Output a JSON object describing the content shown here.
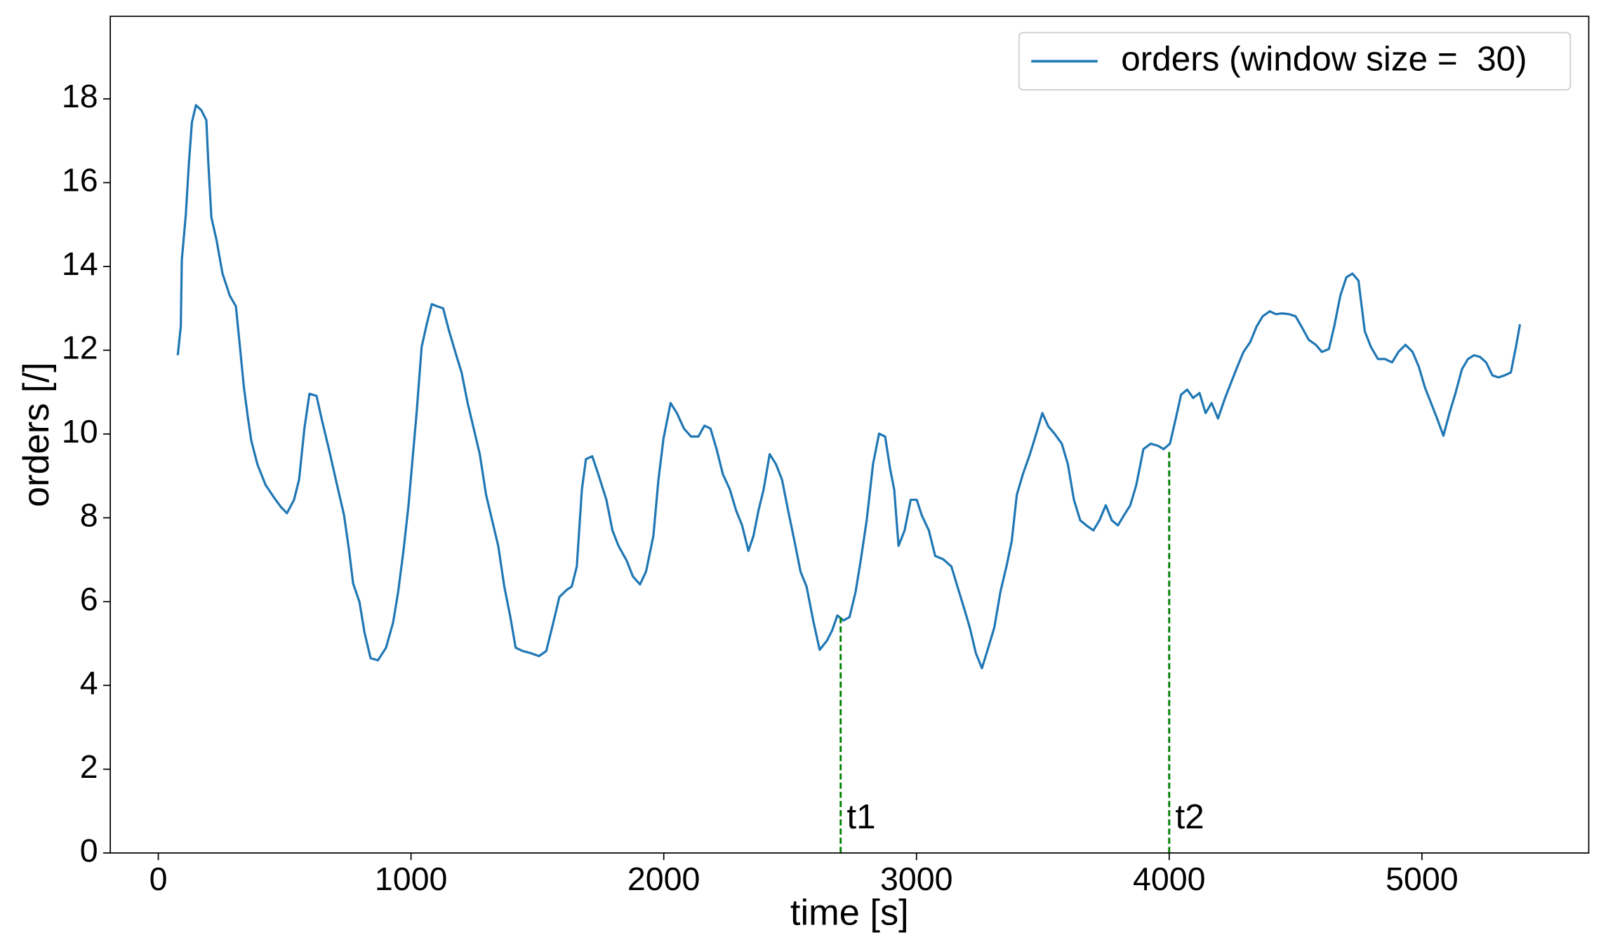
{
  "chart_data": {
    "type": "line",
    "xlabel": "time [s]",
    "ylabel": "orders [/]",
    "xlim": [
      -190,
      5660
    ],
    "ylim": [
      0,
      19.97
    ],
    "xticks": [
      0,
      1000,
      2000,
      3000,
      4000,
      5000
    ],
    "yticks": [
      0,
      2,
      4,
      6,
      8,
      10,
      12,
      14,
      16,
      18
    ],
    "legend": "upper right",
    "series": [
      {
        "name": "orders (window size =  30)",
        "color": "#1f77b4",
        "x": [
          77,
          89,
          93,
          109,
          121,
          133,
          149,
          170,
          190,
          198,
          210,
          230,
          254,
          283,
          307,
          323,
          339,
          355,
          368,
          392,
          424,
          456,
          485,
          509,
          537,
          557,
          578,
          598,
          626,
          646,
          675,
          707,
          735,
          755,
          771,
          796,
          816,
          840,
          869,
          901,
          929,
          949,
          970,
          990,
          1006,
          1022,
          1042,
          1062,
          1082,
          1103,
          1127,
          1151,
          1175,
          1200,
          1224,
          1248,
          1272,
          1297,
          1321,
          1345,
          1369,
          1393,
          1414,
          1442,
          1474,
          1506,
          1535,
          1563,
          1587,
          1616,
          1636,
          1656,
          1676,
          1692,
          1717,
          1741,
          1773,
          1797,
          1821,
          1854,
          1878,
          1906,
          1930,
          1959,
          1979,
          1999,
          2027,
          2052,
          2080,
          2108,
          2137,
          2161,
          2185,
          2209,
          2234,
          2262,
          2286,
          2310,
          2335,
          2355,
          2375,
          2395,
          2419,
          2444,
          2468,
          2492,
          2517,
          2541,
          2565,
          2593,
          2617,
          2646,
          2666,
          2687,
          2711,
          2735,
          2759,
          2779,
          2803,
          2828,
          2852,
          2876,
          2896,
          2912,
          2929,
          2953,
          2977,
          3001,
          3021,
          3049,
          3074,
          3106,
          3138,
          3162,
          3187,
          3211,
          3235,
          3259,
          3284,
          3308,
          3332,
          3356,
          3377,
          3397,
          3421,
          3449,
          3474,
          3498,
          3522,
          3546,
          3575,
          3599,
          3623,
          3648,
          3672,
          3700,
          3724,
          3749,
          3773,
          3797,
          3821,
          3846,
          3870,
          3898,
          3927,
          3955,
          3978,
          4003,
          4026,
          4047,
          4071,
          4095,
          4120,
          4144,
          4168,
          4193,
          4221,
          4245,
          4269,
          4294,
          4321,
          4346,
          4370,
          4398,
          4422,
          4446,
          4475,
          4500,
          4523,
          4552,
          4580,
          4604,
          4632,
          4653,
          4677,
          4701,
          4725,
          4749,
          4774,
          4798,
          4826,
          4854,
          4882,
          4907,
          4935,
          4963,
          4988,
          5012,
          5036,
          5060,
          5085,
          5109,
          5133,
          5158,
          5182,
          5206,
          5230,
          5254,
          5279,
          5303,
          5327,
          5352,
          5372,
          5388
        ],
        "values": [
          11.88,
          12.57,
          14.15,
          15.25,
          16.46,
          17.44,
          17.85,
          17.73,
          17.49,
          16.46,
          15.17,
          14.64,
          13.83,
          13.3,
          13.05,
          12.08,
          11.1,
          10.37,
          9.84,
          9.28,
          8.79,
          8.5,
          8.26,
          8.11,
          8.43,
          8.91,
          10.13,
          10.96,
          10.91,
          10.37,
          9.64,
          8.79,
          8.06,
          7.21,
          6.43,
          5.99,
          5.26,
          4.65,
          4.6,
          4.9,
          5.5,
          6.23,
          7.21,
          8.3,
          9.4,
          10.5,
          12.08,
          12.62,
          13.1,
          13.05,
          13.0,
          12.45,
          11.96,
          11.47,
          10.74,
          10.13,
          9.52,
          8.55,
          7.94,
          7.33,
          6.36,
          5.63,
          4.9,
          4.82,
          4.77,
          4.7,
          4.82,
          5.5,
          6.11,
          6.28,
          6.36,
          6.84,
          8.67,
          9.4,
          9.47,
          9.04,
          8.43,
          7.7,
          7.33,
          6.97,
          6.6,
          6.41,
          6.72,
          7.57,
          8.91,
          9.89,
          10.74,
          10.5,
          10.13,
          9.94,
          9.94,
          10.2,
          10.13,
          9.64,
          9.04,
          8.67,
          8.18,
          7.82,
          7.21,
          7.57,
          8.18,
          8.67,
          9.52,
          9.28,
          8.91,
          8.18,
          7.45,
          6.72,
          6.36,
          5.5,
          4.85,
          5.07,
          5.31,
          5.67,
          5.55,
          5.63,
          6.23,
          6.97,
          7.94,
          9.28,
          10.01,
          9.94,
          9.16,
          8.67,
          7.33,
          7.7,
          8.43,
          8.43,
          8.06,
          7.7,
          7.09,
          7.01,
          6.84,
          6.36,
          5.87,
          5.38,
          4.77,
          4.41,
          4.9,
          5.38,
          6.23,
          6.84,
          7.45,
          8.55,
          9.04,
          9.52,
          10.01,
          10.5,
          10.18,
          10.01,
          9.77,
          9.28,
          8.43,
          7.94,
          7.82,
          7.7,
          7.94,
          8.3,
          7.94,
          7.82,
          8.06,
          8.3,
          8.79,
          9.64,
          9.77,
          9.72,
          9.64,
          9.77,
          10.37,
          10.94,
          11.06,
          10.86,
          10.98,
          10.5,
          10.74,
          10.37,
          10.86,
          11.23,
          11.6,
          11.96,
          12.2,
          12.57,
          12.81,
          12.93,
          12.86,
          12.88,
          12.86,
          12.81,
          12.57,
          12.25,
          12.13,
          11.96,
          12.03,
          12.57,
          13.3,
          13.74,
          13.83,
          13.66,
          12.45,
          12.08,
          11.79,
          11.79,
          11.71,
          11.96,
          12.13,
          11.96,
          11.6,
          11.11,
          10.74,
          10.37,
          9.96,
          10.5,
          10.98,
          11.54,
          11.79,
          11.88,
          11.84,
          11.71,
          11.4,
          11.35,
          11.4,
          11.47,
          12.08,
          12.62
        ]
      }
    ],
    "vlines": [
      {
        "x": 2700,
        "y": 5.63,
        "label": "t1",
        "color": "#008000"
      },
      {
        "x": 4000,
        "y": 9.64,
        "label": "t2",
        "color": "#008000"
      }
    ]
  }
}
